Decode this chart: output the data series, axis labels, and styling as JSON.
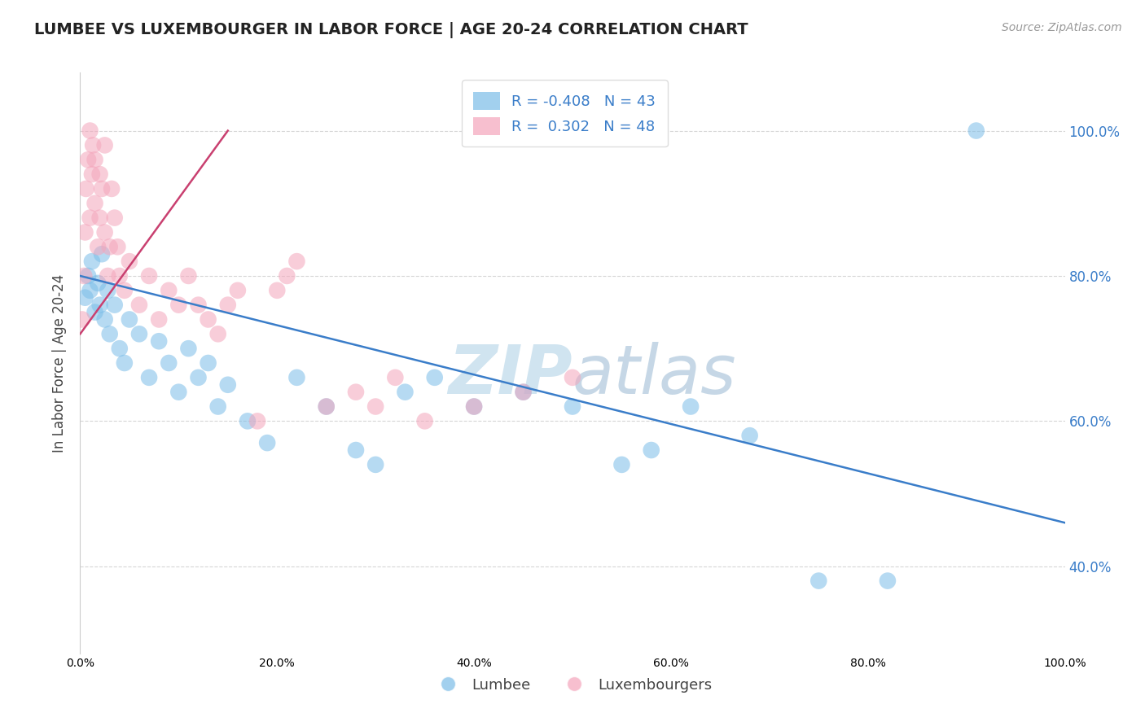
{
  "title": "LUMBEE VS LUXEMBOURGER IN LABOR FORCE | AGE 20-24 CORRELATION CHART",
  "source_text": "Source: ZipAtlas.com",
  "ylabel": "In Labor Force | Age 20-24",
  "lumbee_R": -0.408,
  "lumbee_N": 43,
  "luxembourger_R": 0.302,
  "luxembourger_N": 48,
  "lumbee_color": "#7bbde8",
  "luxembourger_color": "#f4a5bb",
  "lumbee_line_color": "#3a7dc9",
  "luxembourger_line_color": "#c94070",
  "background_color": "#ffffff",
  "watermark_color": "#d0e4f0",
  "legend_labels": [
    "Lumbee",
    "Luxembourgers"
  ],
  "xlim": [
    0,
    100
  ],
  "ylim": [
    28,
    108
  ],
  "xticks": [
    0,
    20,
    40,
    60,
    80,
    100
  ],
  "yticks": [
    40,
    60,
    80,
    100
  ],
  "grid_color": "#cccccc",
  "lumbee_x": [
    0.5,
    0.8,
    1.0,
    1.2,
    1.5,
    1.8,
    2.0,
    2.2,
    2.5,
    2.8,
    3.0,
    3.5,
    4.0,
    4.5,
    5.0,
    6.0,
    7.0,
    8.0,
    9.0,
    10.0,
    11.0,
    12.0,
    13.0,
    14.0,
    15.0,
    17.0,
    19.0,
    22.0,
    25.0,
    28.0,
    30.0,
    33.0,
    36.0,
    40.0,
    45.0,
    50.0,
    55.0,
    58.0,
    62.0,
    68.0,
    75.0,
    82.0,
    91.0
  ],
  "lumbee_y": [
    77,
    80,
    78,
    82,
    75,
    79,
    76,
    83,
    74,
    78,
    72,
    76,
    70,
    68,
    74,
    72,
    66,
    71,
    68,
    64,
    70,
    66,
    68,
    62,
    65,
    60,
    57,
    66,
    62,
    56,
    54,
    64,
    66,
    62,
    64,
    62,
    54,
    56,
    62,
    58,
    38,
    38,
    100
  ],
  "luxembourger_x": [
    0.2,
    0.4,
    0.5,
    0.6,
    0.8,
    1.0,
    1.0,
    1.2,
    1.3,
    1.5,
    1.5,
    1.8,
    2.0,
    2.0,
    2.2,
    2.5,
    2.5,
    2.8,
    3.0,
    3.2,
    3.5,
    3.8,
    4.0,
    4.5,
    5.0,
    6.0,
    7.0,
    8.0,
    9.0,
    10.0,
    11.0,
    12.0,
    13.0,
    14.0,
    15.0,
    16.0,
    18.0,
    20.0,
    21.0,
    22.0,
    25.0,
    28.0,
    30.0,
    32.0,
    35.0,
    40.0,
    45.0,
    50.0
  ],
  "luxembourger_y": [
    74,
    80,
    86,
    92,
    96,
    100,
    88,
    94,
    98,
    90,
    96,
    84,
    88,
    94,
    92,
    86,
    98,
    80,
    84,
    92,
    88,
    84,
    80,
    78,
    82,
    76,
    80,
    74,
    78,
    76,
    80,
    76,
    74,
    72,
    76,
    78,
    60,
    78,
    80,
    82,
    62,
    64,
    62,
    66,
    60,
    62,
    64,
    66
  ],
  "lum_line_x0": 0,
  "lum_line_x1": 100,
  "lum_line_y0": 80,
  "lum_line_y1": 46,
  "lux_line_x0": 0,
  "lux_line_x1": 15,
  "lux_line_y0": 72,
  "lux_line_y1": 100
}
